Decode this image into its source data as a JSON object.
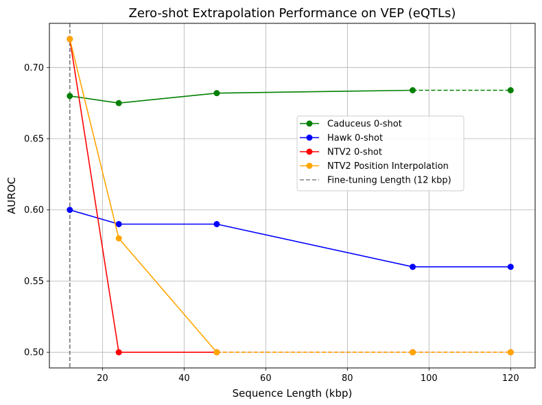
{
  "chart_data": {
    "type": "line",
    "title": "Zero-shot Extrapolation Performance on VEP (eQTLs)",
    "xlabel": "Sequence Length (kbp)",
    "ylabel": "AUROC",
    "xlim": [
      7,
      126
    ],
    "ylim": [
      0.489,
      0.731
    ],
    "xticks": [
      20,
      40,
      60,
      80,
      100,
      120
    ],
    "xtick_labels": [
      "20",
      "40",
      "60",
      "80",
      "100",
      "120"
    ],
    "yticks": [
      0.5,
      0.55,
      0.6,
      0.65,
      0.7
    ],
    "ytick_labels": [
      "0.50",
      "0.55",
      "0.60",
      "0.65",
      "0.70"
    ],
    "grid": true,
    "legend_position": "center-right",
    "series": [
      {
        "name": "Caduceus 0-shot",
        "color": "#008000",
        "x": [
          12,
          24,
          48,
          96,
          120
        ],
        "y": [
          0.68,
          0.675,
          0.682,
          0.684,
          0.684
        ],
        "dashed_from_index": 3
      },
      {
        "name": "Hawk 0-shot",
        "color": "#0000ff",
        "x": [
          12,
          24,
          48,
          96,
          120
        ],
        "y": [
          0.6,
          0.59,
          0.59,
          0.56,
          0.56
        ],
        "dashed_from_index": null
      },
      {
        "name": "NTV2  0-shot",
        "color": "#ff0000",
        "x": [
          12,
          24,
          48,
          96,
          120
        ],
        "y": [
          0.72,
          0.5,
          0.5,
          0.5,
          0.5
        ],
        "dashed_from_index": 2
      },
      {
        "name": "NTV2 Position Interpolation",
        "color": "#ffa500",
        "x": [
          12,
          24,
          48,
          96,
          120
        ],
        "y": [
          0.72,
          0.58,
          0.5,
          0.5,
          0.5
        ],
        "dashed_from_index": 2
      }
    ],
    "reference_line": {
      "label": "Fine-tuning Length (12 kbp)",
      "x": 12,
      "color": "#808080"
    }
  }
}
